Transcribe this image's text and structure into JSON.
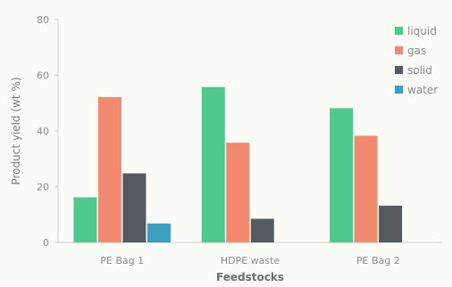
{
  "chart_data": {
    "type": "bar",
    "title": "",
    "xlabel": "Feedstocks",
    "ylabel": "Product yield (wt %)",
    "categories": [
      "PE Bag 1",
      "HDPE waste",
      "PE Bag 2"
    ],
    "yticks": [
      "0",
      "20",
      "40",
      "60",
      "80"
    ],
    "ylim": [
      0,
      80
    ],
    "grid": false,
    "legend_position": "top-right",
    "series": [
      {
        "name": "liquid",
        "values": [
          16.2,
          55.8,
          48.2
        ],
        "color": "#4fca8f"
      },
      {
        "name": "gas",
        "values": [
          52.2,
          35.8,
          38.3
        ],
        "color": "#f28a6f"
      },
      {
        "name": "solid",
        "values": [
          24.8,
          8.5,
          13.2
        ],
        "color": "#555a5e"
      },
      {
        "name": "water",
        "values": [
          6.8,
          0,
          0
        ],
        "color": "#3d9fc0"
      }
    ]
  }
}
